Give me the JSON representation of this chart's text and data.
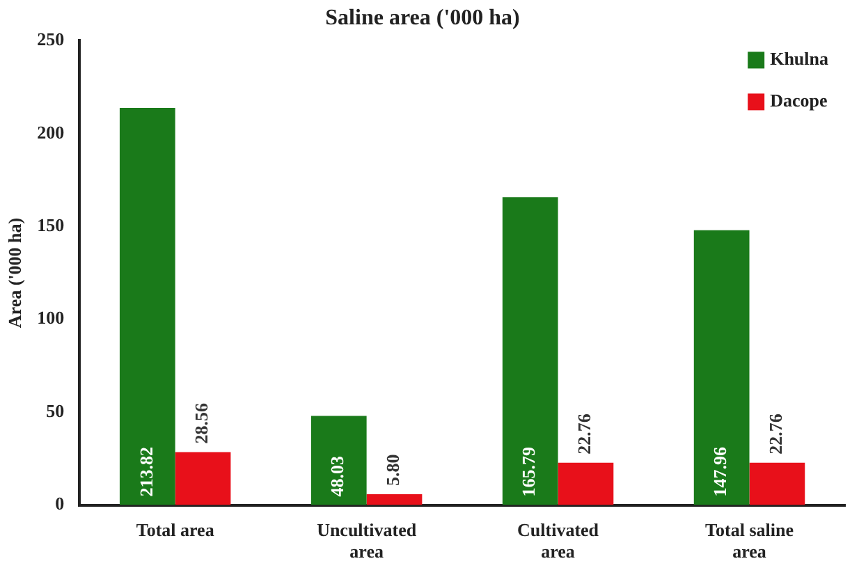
{
  "chart_data": {
    "type": "bar",
    "title": "Saline area ('000 ha)",
    "ylabel": "Area ('000 ha)",
    "categories": [
      "Total area",
      "Uncultivated area",
      "Cultivated area",
      "Total saline area"
    ],
    "series": [
      {
        "name": "Khulna",
        "color": "#1a7a1a",
        "values": [
          213.82,
          48.03,
          165.79,
          147.96
        ]
      },
      {
        "name": "Dacope",
        "color": "#e8101a",
        "values": [
          28.56,
          5.8,
          22.76,
          22.76
        ]
      }
    ],
    "value_labels": [
      [
        "213.82",
        "48.03",
        "165.79",
        "147.96"
      ],
      [
        "28.56",
        "5.80",
        "22.76",
        "22.76"
      ]
    ],
    "ylim": [
      0,
      250
    ],
    "yticks": [
      0,
      50,
      100,
      150,
      200,
      250
    ],
    "grid": false,
    "legend": "top right"
  }
}
